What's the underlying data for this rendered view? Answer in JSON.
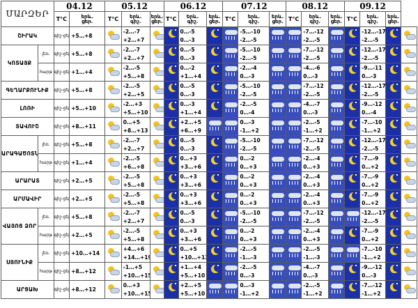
{
  "header": {
    "marz": "ՄԱՐԶԵՐ",
    "dates": [
      "04.12",
      "05.12",
      "06.12",
      "07.12",
      "08.12",
      "09.12"
    ],
    "tc": "T°C",
    "ereva": "երև.",
    "cer": "ցեր.",
    "gish": "գիշ."
  },
  "labels": {
    "gish_cer": "գիշ-ցեր.",
    "leran": "լեռ.",
    "harth": "հարթ"
  },
  "rows": [
    {
      "region": "ՇԻՐԱԿ",
      "d1": "+5…+8",
      "d": [
        [
          "-2…-7",
          "+2…+7"
        ],
        [
          "0…-5",
          "0…-3"
        ],
        [
          "-5…-10",
          "-2…-5"
        ],
        [
          "-7…-12",
          "-2…-5"
        ],
        [
          "-12…-17",
          "-2…-5"
        ]
      ]
    },
    {
      "region": "ԿՈՏԱՅՔ",
      "sub": "լեռ.",
      "d1": "+5…+8",
      "d": [
        [
          "-2…-7",
          "+2…+7"
        ],
        [
          "0…-5",
          "0…-3"
        ],
        [
          "-5…-10",
          "-2…-5"
        ],
        [
          "-7…-12",
          "-2…-5"
        ],
        [
          "-12…-17",
          "-2…-5"
        ]
      ]
    },
    {
      "region": "",
      "sub": "հարթ",
      "d1": "+1…+4",
      "d": [
        [
          "-2…-5",
          "+5…+8"
        ],
        [
          "0…-2",
          "+1…+4"
        ],
        [
          "-2…-4",
          "0…-3"
        ],
        [
          "-4…-6",
          "0…-3"
        ],
        [
          "-9…-11",
          "0…-3"
        ]
      ]
    },
    {
      "region": "ԳԵՂԱՐՔՈՒՆԻՔ",
      "d1": "+5…+8",
      "d": [
        [
          "-2…-5",
          "+2…+5"
        ],
        [
          "0…-5",
          "0…-3"
        ],
        [
          "-5…-10",
          "-2…-5"
        ],
        [
          "-7…-12",
          "-2…-5"
        ],
        [
          "-12…-17",
          "-2…-5"
        ]
      ]
    },
    {
      "region": "ԼՈՌԻ",
      "d1": "+5…+10",
      "d": [
        [
          "-2…+3",
          "+5…+10"
        ],
        [
          "0…-3",
          "+1…+4"
        ],
        [
          "-2…-5",
          "0…-4"
        ],
        [
          "-4…-7",
          "0…-3"
        ],
        [
          "-9…-12",
          "0…-4"
        ]
      ]
    },
    {
      "region": "ՏԱՎՈՒՇ",
      "d1": "+8…+11",
      "d": [
        [
          "0…+5",
          "+8…+13"
        ],
        [
          "+2…+5",
          "+6…+9"
        ],
        [
          "0…-3",
          "-1…+2"
        ],
        [
          "-2…-5",
          "-1…+2"
        ],
        [
          "-7…-10",
          "-1…+2"
        ]
      ]
    },
    {
      "region": "ԱՐԱԳԱԾՈՏՆ",
      "sub": "լեռ.",
      "d1": "+5…+8",
      "d": [
        [
          "-2…-7",
          "+2…+7"
        ],
        [
          "0…-5",
          "0…-3"
        ],
        [
          "-5…-10",
          "-2…-5"
        ],
        [
          "-7…-12",
          "-2…-5"
        ],
        [
          "-12…-17",
          "-2…-5"
        ]
      ]
    },
    {
      "region": "",
      "sub": "հարթ",
      "d1": "+1…+4",
      "d": [
        [
          "-2…-5",
          "+6…+8"
        ],
        [
          "0…+3",
          "+3…+6"
        ],
        [
          "0…-2",
          "0…+3"
        ],
        [
          "-2…-4",
          "0…+3"
        ],
        [
          "-7…-9",
          "0…+2"
        ]
      ]
    },
    {
      "region": "ԱՐԱՐԱՏ",
      "d1": "+2…+5",
      "d": [
        [
          "-2…-5",
          "+5…+8"
        ],
        [
          "0…+3",
          "+3…+6"
        ],
        [
          "0…-2",
          "0…+3"
        ],
        [
          "-2…-4",
          "0…+3"
        ],
        [
          "-7…-9",
          "0…+2"
        ]
      ]
    },
    {
      "region": "ԱՐՄԱՎԻՐ",
      "d1": "+2…+5",
      "d": [
        [
          "-2…-5",
          "+5…+8"
        ],
        [
          "0…+3",
          "+3…+6"
        ],
        [
          "0…-2",
          "0…+3"
        ],
        [
          "-2…-4",
          "0…+3"
        ],
        [
          "-7…-9",
          "0…+2"
        ]
      ]
    },
    {
      "region": "ՎԱՅՈՑ ՁՈՐ",
      "sub": "լեռ.",
      "d1": "+5…+8",
      "d": [
        [
          "-2…-7",
          "+2…+7"
        ],
        [
          "0…-5",
          "0…-3"
        ],
        [
          "-5…-10",
          "-2…-5"
        ],
        [
          "-7…-12",
          "-2…-5"
        ],
        [
          "-12…-17",
          "-2…-5"
        ]
      ]
    },
    {
      "region": "",
      "sub": "հարթ",
      "d1": "+2…+5",
      "d": [
        [
          "-2…-5",
          "+5…+8"
        ],
        [
          "0…+3",
          "+3…+6"
        ],
        [
          "0…-2",
          "0…+3"
        ],
        [
          "-2…-4",
          "0…+3"
        ],
        [
          "-7…-9",
          "0…+2"
        ]
      ]
    },
    {
      "region": "ՍՅՈՒՆԻՔ",
      "sub": "լեռ.",
      "d1": "+10…+14",
      "d": [
        [
          "+4…+6",
          "+14…+19"
        ],
        [
          "0…+5",
          "+10…+13"
        ],
        [
          "-2…-5",
          "-1…-3"
        ],
        [
          "-2…-5",
          "-1…-3"
        ],
        [
          "-7…-10",
          "-1…+2"
        ]
      ]
    },
    {
      "region": "",
      "sub": "հարթ",
      "d1": "+8…+12",
      "d": [
        [
          "-1…+5",
          "+10…+15"
        ],
        [
          "+1…+4",
          "+5…+10"
        ],
        [
          "-2…-5",
          "0…-3"
        ],
        [
          "-4…-7",
          "0…-3"
        ],
        [
          "-9…-12",
          "0…-3"
        ]
      ]
    },
    {
      "region": "ԱՐՑԱԽ",
      "d1": "+8…+12",
      "d": [
        [
          "0…+3",
          "+10…+15"
        ],
        [
          "+2…+5",
          "+5…+10"
        ],
        [
          "0…-3",
          "-1…+2"
        ],
        [
          "-2…-5",
          "-1…+2"
        ],
        [
          "-7…-12",
          "-1…+2"
        ]
      ]
    }
  ]
}
